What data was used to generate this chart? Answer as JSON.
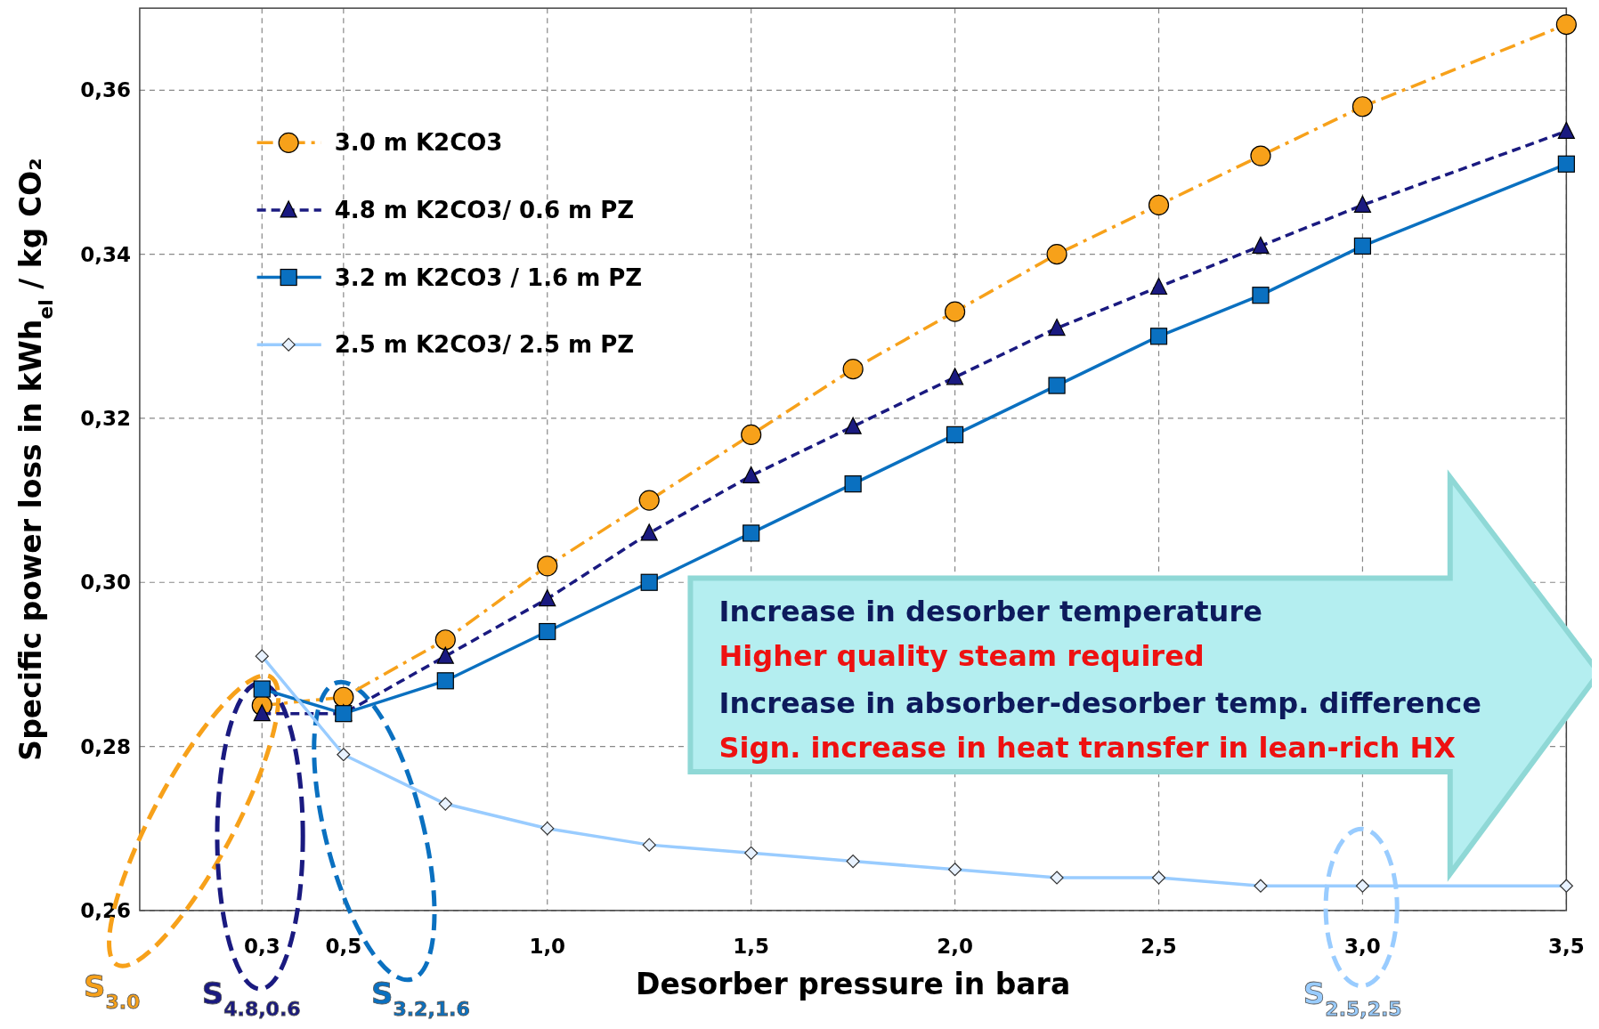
{
  "chart_data": {
    "type": "line",
    "xlabel": "Desorber pressure in bara",
    "ylabel": "Specific power loss in kWh$_{el}$ / kg CO₂",
    "x": [
      0.3,
      0.5,
      0.75,
      1.0,
      1.25,
      1.5,
      1.75,
      2.0,
      2.25,
      2.5,
      2.75,
      3.0,
      3.5
    ],
    "series": [
      {
        "name": "3.0 m K2CO3",
        "color": "#f7a11a",
        "marker": "circle",
        "line_style": "dashdot",
        "values": [
          0.285,
          0.286,
          0.293,
          0.302,
          0.31,
          0.318,
          0.326,
          0.333,
          0.34,
          0.346,
          0.352,
          0.358,
          0.368
        ]
      },
      {
        "name": "4.8 m K2CO3/ 0.6 m PZ",
        "color": "#1a1a80",
        "marker": "triangle",
        "line_style": "dashed",
        "values": [
          0.284,
          0.284,
          0.291,
          0.298,
          0.306,
          0.313,
          0.319,
          0.325,
          0.331,
          0.336,
          0.341,
          0.346,
          0.355
        ]
      },
      {
        "name": "3.2 m K2CO3 / 1.6 m PZ",
        "color": "#0a70c0",
        "marker": "square",
        "line_style": "solid",
        "values": [
          0.287,
          0.284,
          0.288,
          0.294,
          0.3,
          0.306,
          0.312,
          0.318,
          0.324,
          0.33,
          0.335,
          0.341,
          0.351
        ]
      },
      {
        "name": "2.5 m K2CO3/ 2.5 m PZ",
        "color": "#99ccff",
        "marker": "diamond",
        "line_style": "solid",
        "values": [
          0.291,
          0.279,
          0.273,
          0.27,
          0.268,
          0.267,
          0.266,
          0.265,
          0.264,
          0.264,
          0.263,
          0.263,
          0.263
        ]
      }
    ],
    "xlim": [
      0,
      3.5
    ],
    "xticks": [
      {
        "value": 0.3,
        "label": "0,3"
      },
      {
        "value": 0.5,
        "label": "0,5"
      },
      {
        "value": 1.0,
        "label": "1,0"
      },
      {
        "value": 1.5,
        "label": "1,5"
      },
      {
        "value": 2.0,
        "label": "2,0"
      },
      {
        "value": 2.5,
        "label": "2,5"
      },
      {
        "value": 3.0,
        "label": "3,0"
      },
      {
        "value": 3.5,
        "label": "3,5"
      }
    ],
    "ylim": [
      0.26,
      0.37
    ],
    "yticks": [
      {
        "value": 0.26,
        "label": "0,26"
      },
      {
        "value": 0.28,
        "label": "0,28"
      },
      {
        "value": 0.3,
        "label": "0,30"
      },
      {
        "value": 0.32,
        "label": "0,32"
      },
      {
        "value": 0.34,
        "label": "0,34"
      },
      {
        "value": 0.36,
        "label": "0,36"
      }
    ],
    "grid": true,
    "legend": "top left",
    "annotations": [
      "Increase in desorber temperature",
      "Higher quality steam required",
      "Increase in absorber-desorber temp. difference",
      "Sign. increase in heat transfer in lean-rich HX",
      "S$_{3.0}$",
      "S$_{4.8,0.6}$",
      "S$_{3.2,1.6}$",
      "S$_{2.5,2.5}$"
    ]
  }
}
